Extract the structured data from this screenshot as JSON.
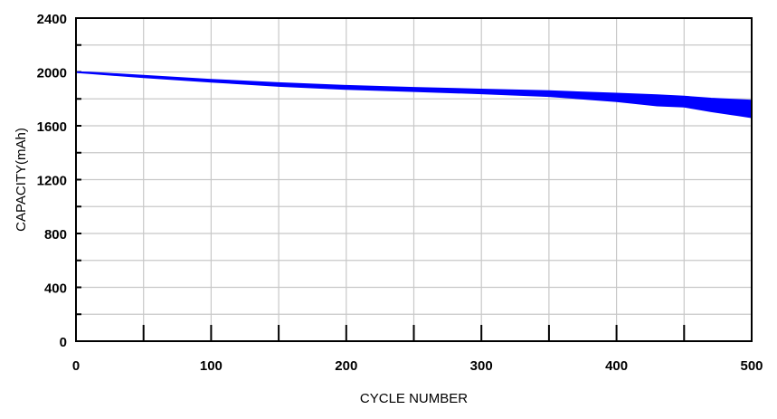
{
  "chart_data": {
    "type": "area",
    "title": "",
    "xlabel": "CYCLE NUMBER",
    "ylabel": "CAPACITY(mAh)",
    "xlim": [
      0,
      500
    ],
    "ylim": [
      0,
      2400
    ],
    "xticks": [
      0,
      100,
      200,
      300,
      400,
      500
    ],
    "yticks": [
      0,
      400,
      800,
      1200,
      1600,
      2000,
      2400
    ],
    "xtick_labels": [
      "0",
      "100",
      "200",
      "300",
      "400",
      "500"
    ],
    "ytick_labels": [
      "0",
      "400",
      "800",
      "1200",
      "1600",
      "2000",
      "2400"
    ],
    "grid": true,
    "legend": "none",
    "band": {
      "x": [
        0,
        10,
        50,
        100,
        150,
        200,
        250,
        300,
        350,
        400,
        430,
        450,
        470,
        490,
        500
      ],
      "upper": [
        2002,
        1998,
        1975,
        1945,
        1920,
        1900,
        1885,
        1872,
        1860,
        1842,
        1830,
        1820,
        1805,
        1795,
        1790
      ],
      "lower": [
        1995,
        1988,
        1958,
        1925,
        1893,
        1870,
        1855,
        1838,
        1818,
        1780,
        1748,
        1740,
        1705,
        1675,
        1660
      ]
    },
    "colors": {
      "band_fill": "#0000ff",
      "grid": "#c8c8c8",
      "axis": "#000000"
    }
  }
}
